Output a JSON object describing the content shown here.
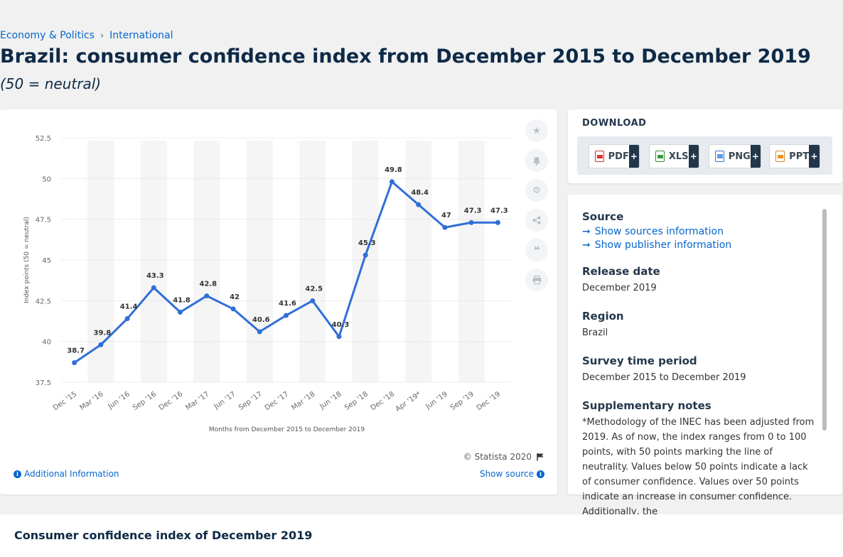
{
  "breadcrumb": {
    "item1": "Economy & Politics",
    "sep": "›",
    "item2": "International"
  },
  "title": "Brazil: consumer confidence index from December 2015 to December 2019",
  "subtitle": "(50 = neutral)",
  "chart_data": {
    "type": "line",
    "categories": [
      "Dec '15",
      "Mar '16",
      "Jun '16",
      "Sep '16",
      "Dec '16",
      "Mar '17",
      "Jun '17",
      "Sep '17",
      "Dec '17",
      "Mar '18",
      "Jun '18",
      "Sep '18",
      "Dec '18",
      "Apr '19*",
      "Jun '19",
      "Sep '19",
      "Dec '19"
    ],
    "values": [
      38.7,
      39.8,
      41.4,
      43.3,
      41.8,
      42.8,
      42,
      40.6,
      41.6,
      42.5,
      40.3,
      45.3,
      49.8,
      48.4,
      47,
      47.3,
      47.3
    ],
    "value_labels": [
      "38.7",
      "39.8",
      "41.4",
      "43.3",
      "41.8",
      "42.8",
      "42",
      "40.6",
      "41.6",
      "42.5",
      "40.3",
      "45.3",
      "49.8",
      "48.4",
      "47",
      "47.3",
      "47.3"
    ],
    "yticks": [
      "37.5",
      "40",
      "42.5",
      "45",
      "47.5",
      "50",
      "52.5"
    ],
    "ylim": [
      37.5,
      52.5
    ],
    "xlabel": "Months from December 2015 to December 2019",
    "ylabel": "Index points (50 = neutral)",
    "line_color": "#2f6fd6",
    "grid": true
  },
  "chart_footer": {
    "copyright": "© Statista 2020",
    "additional_info": "Additional Information",
    "show_source": "Show source"
  },
  "download": {
    "title": "DOWNLOAD",
    "buttons": [
      {
        "label": "PDF",
        "plus": "+"
      },
      {
        "label": "XLS",
        "plus": "+"
      },
      {
        "label": "PNG",
        "plus": "+"
      },
      {
        "label": "PPT",
        "plus": "+"
      }
    ]
  },
  "meta": {
    "source_h": "Source",
    "show_sources": "Show sources information",
    "show_publisher": "Show publisher information",
    "release_h": "Release date",
    "release_v": "December 2019",
    "region_h": "Region",
    "region_v": "Brazil",
    "survey_h": "Survey time period",
    "survey_v": "December 2015 to December 2019",
    "notes_h": "Supplementary notes",
    "notes_v": "*Methodology of the INEC has been adjusted from 2019. As of now, the index ranges from 0 to 100 points, with 50 points marking the line of neutrality. Values below 50 points indicate a lack of consumer confidence. Values over 50 points indicate an increase in consumer confidence. Additionally, the"
  },
  "bottom_title": "Consumer confidence index of December 2019"
}
